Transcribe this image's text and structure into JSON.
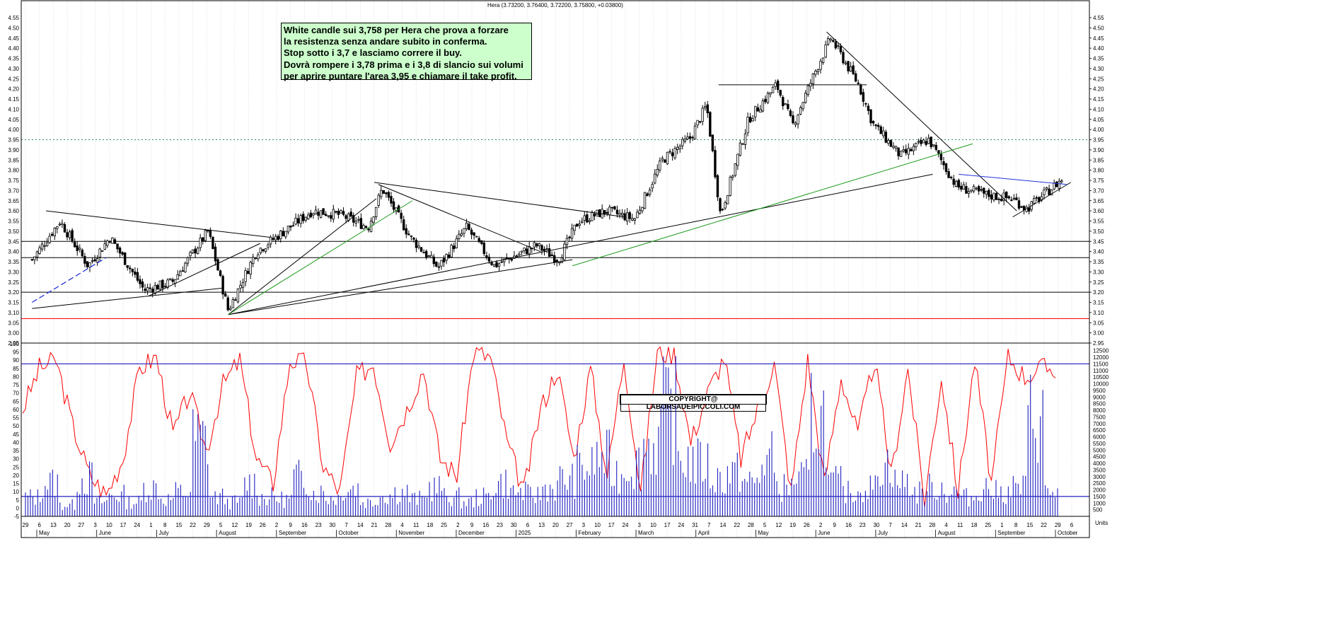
{
  "header": {
    "title": "Hera (3.73200, 3.76400, 3.72200, 3.75800, +0.03800)"
  },
  "annotation": {
    "lines": [
      "White candle sui 3,758 per Hera che prova a forzare",
      "la resistenza senza andare subito in conferma.",
      "Stop sotto i 3,7 e lasciamo correre il buy.",
      "Dovrà rompere i 3,78 prima e i 3,8 di slancio sui volumi",
      "per aprire puntare l'area 3,95 e chiamare il take profit."
    ]
  },
  "copyright": "COPYRIGHT@ LABORSADEIPICCOLI.COM",
  "colors": {
    "candle": "#000000",
    "trendline": "#000000",
    "green_trendline": "#1a9a1a",
    "blue_trendline": "#2233dd",
    "support_red": "#ff0000",
    "dotted_resistance": "#2e8b57",
    "oscillator": "#ff0000",
    "volume": "#2020c0",
    "note_background": "#ccffcc"
  },
  "chart_data": [
    {
      "type": "candlestick",
      "title": "Hera (3.73200, 3.76400, 3.72200, 3.75800, +0.03800)",
      "ylim": [
        2.95,
        4.55
      ],
      "y_ticks": [
        "2.95",
        "3.00",
        "3.05",
        "3.10",
        "3.15",
        "3.20",
        "3.25",
        "3.30",
        "3.35",
        "3.40",
        "3.45",
        "3.50",
        "3.55",
        "3.60",
        "3.65",
        "3.70",
        "3.75",
        "3.80",
        "3.85",
        "3.90",
        "3.95",
        "4.00",
        "4.05",
        "4.10",
        "4.15",
        "4.20",
        "4.25",
        "4.30",
        "4.35",
        "4.40",
        "4.45",
        "4.50",
        "4.55"
      ],
      "last_candle": {
        "open": 3.732,
        "high": 3.764,
        "low": 3.722,
        "close": 3.758,
        "change": 0.038
      },
      "price_anchors": [
        {
          "date": "2024-04-29",
          "price": 3.36
        },
        {
          "date": "2024-05-13",
          "price": 3.55
        },
        {
          "date": "2024-05-27",
          "price": 3.33
        },
        {
          "date": "2024-06-07",
          "price": 3.47
        },
        {
          "date": "2024-06-24",
          "price": 3.21
        },
        {
          "date": "2024-07-08",
          "price": 3.25
        },
        {
          "date": "2024-07-26",
          "price": 3.5
        },
        {
          "date": "2024-08-05",
          "price": 3.11
        },
        {
          "date": "2024-08-19",
          "price": 3.4
        },
        {
          "date": "2024-09-02",
          "price": 3.5
        },
        {
          "date": "2024-09-16",
          "price": 3.6
        },
        {
          "date": "2024-09-30",
          "price": 3.58
        },
        {
          "date": "2024-10-14",
          "price": 3.52
        },
        {
          "date": "2024-10-21",
          "price": 3.71
        },
        {
          "date": "2024-11-04",
          "price": 3.47
        },
        {
          "date": "2024-11-18",
          "price": 3.32
        },
        {
          "date": "2024-12-02",
          "price": 3.52
        },
        {
          "date": "2024-12-16",
          "price": 3.33
        },
        {
          "date": "2025-01-06",
          "price": 3.43
        },
        {
          "date": "2025-01-17",
          "price": 3.36
        },
        {
          "date": "2025-01-27",
          "price": 3.55
        },
        {
          "date": "2025-02-10",
          "price": 3.6
        },
        {
          "date": "2025-02-24",
          "price": 3.56
        },
        {
          "date": "2025-03-10",
          "price": 3.85
        },
        {
          "date": "2025-03-24",
          "price": 3.96
        },
        {
          "date": "2025-04-01",
          "price": 4.12
        },
        {
          "date": "2025-04-08",
          "price": 3.58
        },
        {
          "date": "2025-04-22",
          "price": 4.05
        },
        {
          "date": "2025-05-06",
          "price": 4.22
        },
        {
          "date": "2025-05-14",
          "price": 4.02
        },
        {
          "date": "2025-05-26",
          "price": 4.3
        },
        {
          "date": "2025-06-02",
          "price": 4.45
        },
        {
          "date": "2025-06-16",
          "price": 4.22
        },
        {
          "date": "2025-06-23",
          "price": 4.03
        },
        {
          "date": "2025-07-07",
          "price": 3.87
        },
        {
          "date": "2025-07-21",
          "price": 3.95
        },
        {
          "date": "2025-08-04",
          "price": 3.72
        },
        {
          "date": "2025-08-18",
          "price": 3.68
        },
        {
          "date": "2025-09-01",
          "price": 3.66
        },
        {
          "date": "2025-09-08",
          "price": 3.61
        },
        {
          "date": "2025-09-19",
          "price": 3.7
        },
        {
          "date": "2025-09-26",
          "price": 3.758
        }
      ],
      "horizontal_levels": [
        {
          "price": 3.95,
          "style": "dotted",
          "color": "#2e8b57"
        },
        {
          "price": 3.45,
          "style": "solid",
          "color": "#000000"
        },
        {
          "price": 3.37,
          "style": "solid",
          "color": "#000000"
        },
        {
          "price": 3.2,
          "style": "solid",
          "color": "#000000"
        },
        {
          "price": 3.07,
          "style": "solid",
          "color": "#ff0000"
        },
        {
          "price": 4.22,
          "style": "segment",
          "color": "#000000",
          "from": "2025-04-07",
          "to": "2025-06-20"
        }
      ],
      "trendlines": [
        {
          "from": [
            "2024-05-06",
            3.6
          ],
          "to": [
            "2024-08-26",
            3.47
          ],
          "color": "#000000"
        },
        {
          "from": [
            "2024-04-29",
            3.12
          ],
          "to": [
            "2024-08-02",
            3.22
          ],
          "color": "#000000"
        },
        {
          "from": [
            "2024-06-26",
            3.18
          ],
          "to": [
            "2024-08-21",
            3.44
          ],
          "color": "#000000"
        },
        {
          "from": [
            "2024-08-05",
            3.09
          ],
          "to": [
            "2024-10-18",
            3.66
          ],
          "color": "#000000"
        },
        {
          "from": [
            "2024-08-05",
            3.09
          ],
          "to": [
            "2025-01-24",
            3.36
          ],
          "color": "#000000"
        },
        {
          "from": [
            "2024-08-05",
            3.09
          ],
          "to": [
            "2025-07-23",
            3.78
          ],
          "color": "#000000"
        },
        {
          "from": [
            "2024-10-17",
            3.74
          ],
          "to": [
            "2025-02-19",
            3.57
          ],
          "color": "#000000"
        },
        {
          "from": [
            "2024-10-19",
            3.73
          ],
          "to": [
            "2025-01-08",
            3.4
          ],
          "color": "#000000"
        },
        {
          "from": [
            "2025-05-31",
            4.48
          ],
          "to": [
            "2025-09-03",
            3.6
          ],
          "color": "#000000"
        },
        {
          "from": [
            "2025-09-01",
            3.57
          ],
          "to": [
            "2025-09-30",
            3.74
          ],
          "color": "#000000"
        },
        {
          "from": [
            "2024-08-05",
            3.09
          ],
          "to": [
            "2024-11-05",
            3.65
          ],
          "color": "#1a9a1a"
        },
        {
          "from": [
            "2025-01-24",
            3.33
          ],
          "to": [
            "2025-08-12",
            3.93
          ],
          "color": "#1a9a1a"
        },
        {
          "from": [
            "2024-04-29",
            3.15
          ],
          "to": [
            "2024-06-05",
            3.37
          ],
          "color": "#2233dd",
          "dashed": true
        },
        {
          "from": [
            "2025-08-05",
            3.78
          ],
          "to": [
            "2025-09-28",
            3.73
          ],
          "color": "#2233dd"
        }
      ]
    },
    {
      "type": "line",
      "series": [
        {
          "values": [
            60,
            85,
            90,
            50,
            20,
            8,
            30,
            85,
            92,
            45,
            70,
            35,
            75,
            90,
            30,
            15,
            90,
            88,
            25,
            10,
            80,
            88,
            40,
            60,
            85,
            30,
            20,
            95,
            92,
            40,
            10,
            60,
            85,
            30,
            85,
            20,
            92,
            10,
            95,
            94,
            40,
            70,
            92,
            30,
            60,
            88,
            10,
            90,
            15,
            80,
            45,
            90,
            20,
            85,
            5,
            80,
            10,
            90,
            15,
            92,
            80,
            85
          ]
        }
      ],
      "ylim": [
        -5,
        100
      ],
      "y_ticks": [
        "-5",
        "0",
        "5",
        "10",
        "15",
        "20",
        "25",
        "30",
        "35",
        "40",
        "45",
        "50",
        "55",
        "60",
        "65",
        "70",
        "75",
        "80",
        "85",
        "90",
        "95",
        "100"
      ],
      "reference_levels": [
        5,
        95
      ]
    },
    {
      "type": "bar",
      "series": [
        {
          "values": [
            2000,
            3500,
            1200,
            4000,
            1500,
            2200,
            1500,
            3000,
            1800,
            2500,
            8000,
            2000,
            1500,
            3500,
            2000,
            1800,
            4000,
            2500,
            2000,
            3000,
            1500,
            2200,
            2500,
            1800,
            3000,
            2000,
            1500,
            2000,
            3500,
            2500,
            2200,
            3000,
            3800,
            5000,
            6000,
            4500,
            5500,
            7500,
            11000,
            6000,
            5500,
            4000,
            4500,
            3500,
            6000,
            3000,
            4000,
            10500,
            3500,
            2500,
            3000,
            5500,
            3500,
            2500,
            3000,
            2500,
            2000,
            3000,
            2500,
            3000,
            10500,
            2500
          ]
        }
      ],
      "ylim": [
        0,
        12750
      ],
      "y_ticks": [
        "500",
        "1000",
        "1500",
        "2000",
        "2500",
        "3000",
        "3500",
        "4000",
        "4500",
        "5000",
        "5500",
        "6000",
        "6500",
        "7000",
        "7500",
        "8000",
        "8500",
        "9000",
        "9500",
        "10000",
        "10500",
        "11000",
        "11500",
        "12000",
        "12500"
      ],
      "reference_levels": [
        1500,
        11500
      ]
    }
  ],
  "x_axis": {
    "day_ticks": [
      "29",
      "6",
      "13",
      "20",
      "27",
      "3",
      "10",
      "17",
      "24",
      "1",
      "8",
      "15",
      "22",
      "29",
      "5",
      "12",
      "19",
      "26",
      "2",
      "9",
      "16",
      "23",
      "30",
      "7",
      "14",
      "21",
      "28",
      "4",
      "11",
      "18",
      "25",
      "2",
      "9",
      "16",
      "23",
      "30",
      "6",
      "13",
      "20",
      "27",
      "3",
      "10",
      "17",
      "24",
      "3",
      "10",
      "17",
      "24",
      "31",
      "7",
      "14",
      "22",
      "28",
      "5",
      "12",
      "19",
      "26",
      "2",
      "9",
      "16",
      "23",
      "30",
      "7",
      "14",
      "21",
      "28",
      "4",
      "11",
      "18",
      "25",
      "1",
      "8",
      "15",
      "22",
      "29",
      "6"
    ],
    "months": [
      "May",
      "June",
      "July",
      "August",
      "September",
      "October",
      "November",
      "December",
      "2025",
      "February",
      "March",
      "April",
      "May",
      "June",
      "July",
      "August",
      "September",
      "October"
    ],
    "unit_label": "Units"
  }
}
